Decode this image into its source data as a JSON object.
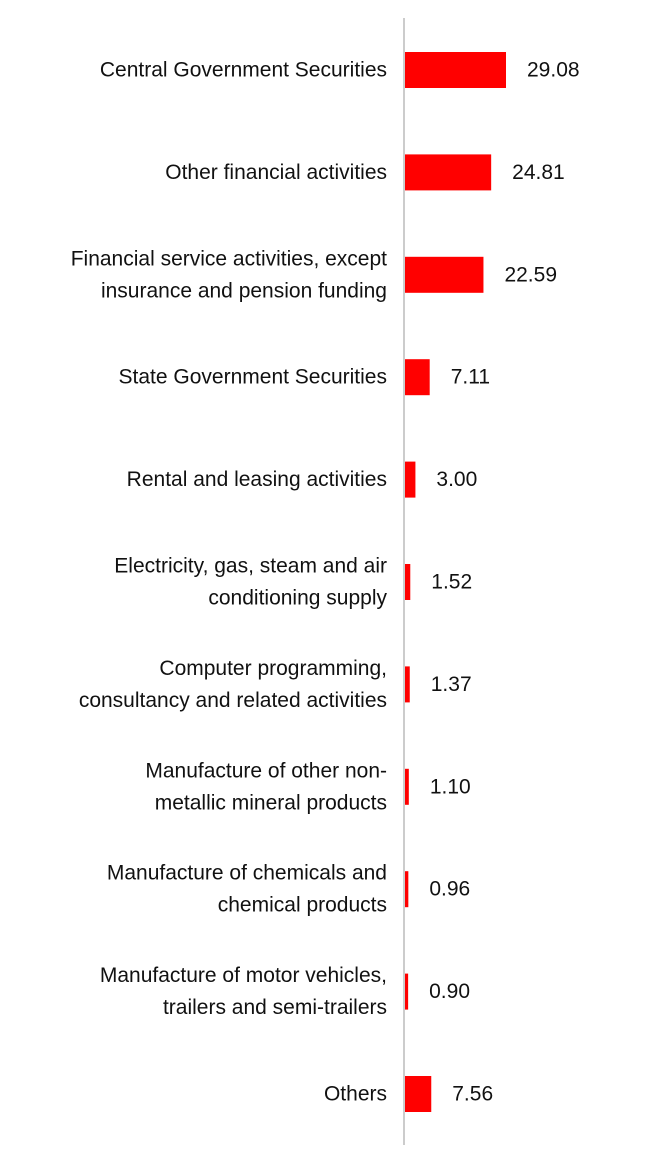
{
  "chart_data": {
    "type": "bar",
    "orientation": "horizontal",
    "categories": [
      "Central Government Securities",
      "Other financial activities",
      "Financial service activities, except insurance and pension funding",
      "State Government Securities",
      "Rental and leasing activities",
      "Electricity, gas, steam and air conditioning supply",
      "Computer programming, consultancy and related activities",
      "Manufacture of other non-metallic mineral products",
      "Manufacture of chemicals and chemical products",
      "Manufacture of motor vehicles, trailers and semi-trailers",
      "Others"
    ],
    "category_lines": [
      [
        "Central Government Securities"
      ],
      [
        "Other financial activities"
      ],
      [
        "Financial service activities, except",
        "insurance and pension funding"
      ],
      [
        "State Government Securities"
      ],
      [
        "Rental and leasing activities"
      ],
      [
        "Electricity, gas, steam and air",
        "conditioning supply"
      ],
      [
        "Computer programming,",
        "consultancy and related activities"
      ],
      [
        "Manufacture of other non-",
        "metallic mineral products"
      ],
      [
        "Manufacture of chemicals and",
        "chemical products"
      ],
      [
        "Manufacture of motor vehicles,",
        "trailers and semi-trailers"
      ],
      [
        "Others"
      ]
    ],
    "values": [
      29.08,
      24.81,
      22.59,
      7.11,
      3.0,
      1.52,
      1.37,
      1.1,
      0.96,
      0.9,
      7.56
    ],
    "value_labels": [
      "29.08",
      "24.81",
      "22.59",
      "7.11",
      "3.00",
      "1.52",
      "1.37",
      "1.10",
      "0.96",
      "0.90",
      "7.56"
    ],
    "bar_color": "#ff0000",
    "axis_color": "#cccccc",
    "title": "",
    "xlabel": "",
    "ylabel": "",
    "grid": false,
    "legend": "none"
  }
}
